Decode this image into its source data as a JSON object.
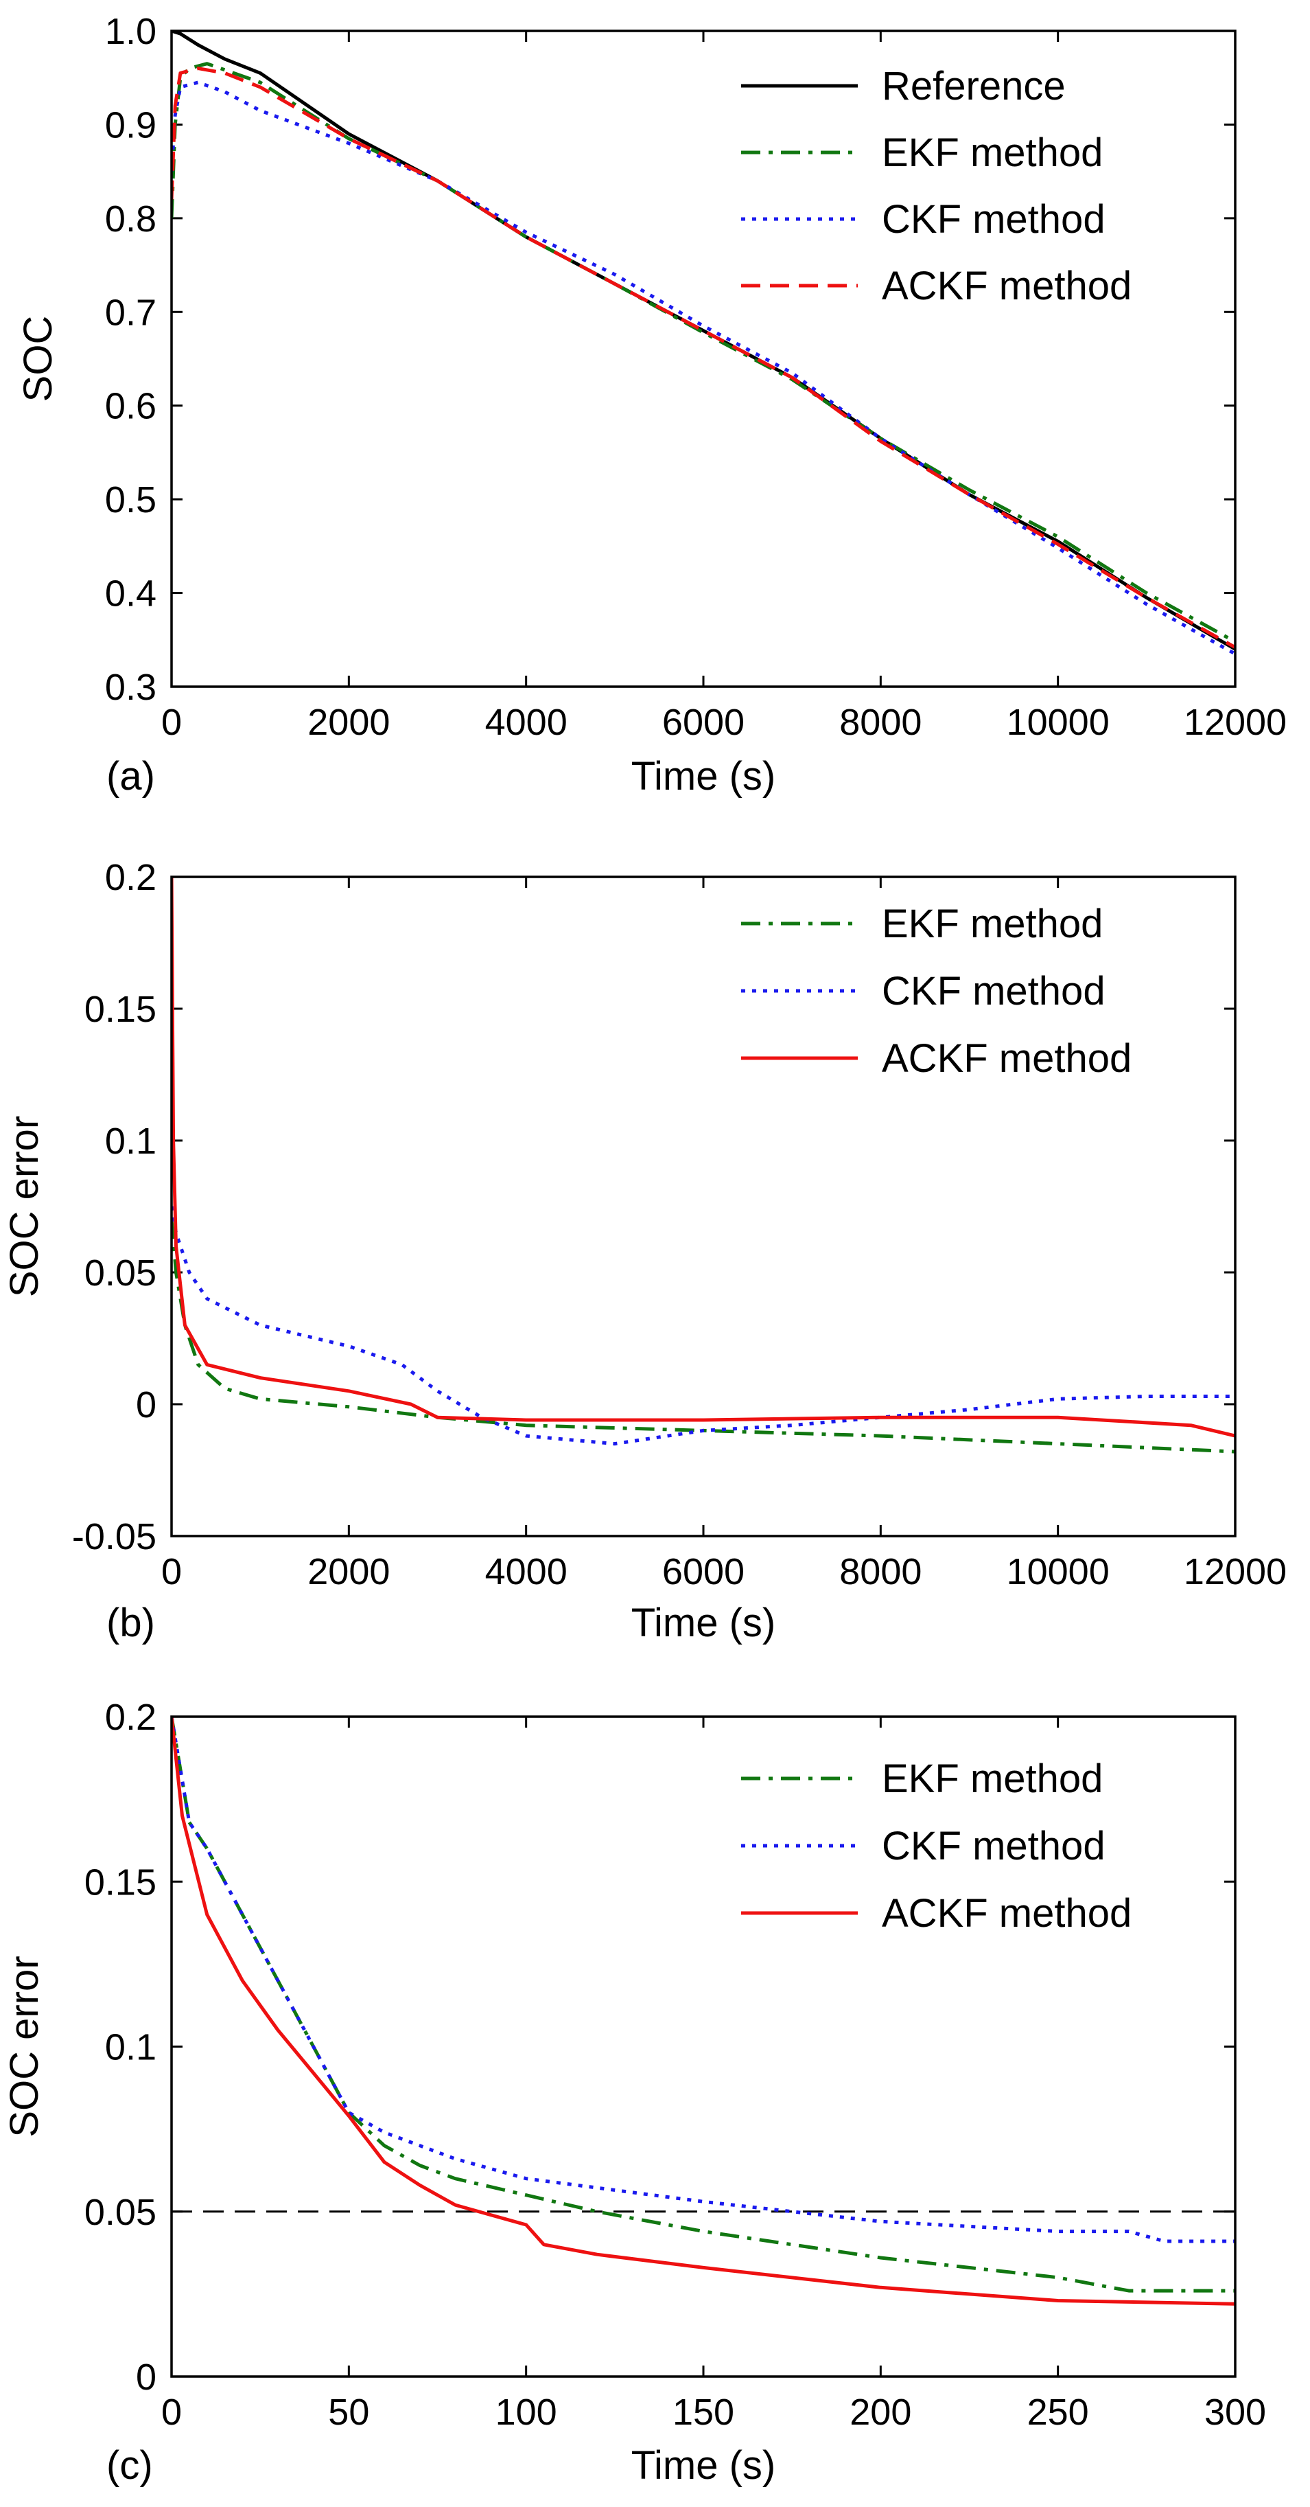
{
  "chart_data": [
    {
      "panel": "(a)",
      "type": "line",
      "xlabel": "Time (s)",
      "ylabel": "SOC",
      "xlim": [
        0,
        12000
      ],
      "ylim": [
        0.3,
        1.0
      ],
      "xticks": [
        0,
        2000,
        4000,
        6000,
        8000,
        10000,
        12000
      ],
      "xtick_labels": [
        "0",
        "2000",
        "4000",
        "6000",
        "8000",
        "10000",
        "12000"
      ],
      "yticks": [
        0.3,
        0.4,
        0.5,
        0.6,
        0.7,
        0.8,
        0.9,
        1.0
      ],
      "ytick_labels": [
        "0.3",
        "0.4",
        "0.5",
        "0.6",
        "0.7",
        "0.8",
        "0.9",
        "1.0"
      ],
      "legend_position": "top-right",
      "series": [
        {
          "name": "Reference",
          "color": "#000000",
          "style": "solid",
          "points": [
            [
              0,
              1.0
            ],
            [
              100,
              0.997
            ],
            [
              300,
              0.985
            ],
            [
              600,
              0.97
            ],
            [
              1000,
              0.955
            ],
            [
              2000,
              0.89
            ],
            [
              3000,
              0.84
            ],
            [
              4000,
              0.78
            ],
            [
              5000,
              0.73
            ],
            [
              6000,
              0.68
            ],
            [
              7000,
              0.63
            ],
            [
              8000,
              0.565
            ],
            [
              9000,
              0.505
            ],
            [
              10000,
              0.455
            ],
            [
              11000,
              0.395
            ],
            [
              12000,
              0.34
            ]
          ]
        },
        {
          "name": "EKF method",
          "color": "#117711",
          "style": "dashdot",
          "points": [
            [
              0,
              0.8
            ],
            [
              40,
              0.9
            ],
            [
              100,
              0.95
            ],
            [
              200,
              0.96
            ],
            [
              400,
              0.965
            ],
            [
              1000,
              0.945
            ],
            [
              2000,
              0.885
            ],
            [
              3000,
              0.84
            ],
            [
              4000,
              0.78
            ],
            [
              5000,
              0.73
            ],
            [
              6000,
              0.678
            ],
            [
              7000,
              0.628
            ],
            [
              8000,
              0.565
            ],
            [
              9000,
              0.51
            ],
            [
              10000,
              0.46
            ],
            [
              11000,
              0.4
            ],
            [
              12000,
              0.348
            ]
          ]
        },
        {
          "name": "CKF method",
          "color": "#1a1aee",
          "style": "dotted",
          "points": [
            [
              0,
              0.85
            ],
            [
              40,
              0.91
            ],
            [
              100,
              0.94
            ],
            [
              300,
              0.945
            ],
            [
              600,
              0.935
            ],
            [
              1000,
              0.915
            ],
            [
              2000,
              0.88
            ],
            [
              3000,
              0.84
            ],
            [
              4000,
              0.785
            ],
            [
              5000,
              0.74
            ],
            [
              6000,
              0.685
            ],
            [
              7000,
              0.635
            ],
            [
              8000,
              0.565
            ],
            [
              9000,
              0.505
            ],
            [
              10000,
              0.448
            ],
            [
              11000,
              0.388
            ],
            [
              12000,
              0.335
            ]
          ]
        },
        {
          "name": "ACKF method",
          "color": "#ee1111",
          "style": "dashed",
          "points": [
            [
              0,
              0.82
            ],
            [
              40,
              0.92
            ],
            [
              100,
              0.955
            ],
            [
              300,
              0.96
            ],
            [
              600,
              0.955
            ],
            [
              1000,
              0.94
            ],
            [
              2000,
              0.885
            ],
            [
              3000,
              0.84
            ],
            [
              4000,
              0.78
            ],
            [
              5000,
              0.73
            ],
            [
              6000,
              0.68
            ],
            [
              7000,
              0.63
            ],
            [
              8000,
              0.562
            ],
            [
              9000,
              0.505
            ],
            [
              10000,
              0.452
            ],
            [
              11000,
              0.395
            ],
            [
              12000,
              0.342
            ]
          ]
        }
      ]
    },
    {
      "panel": "(b)",
      "type": "line",
      "xlabel": "Time (s)",
      "ylabel": "SOC error",
      "xlim": [
        0,
        12000
      ],
      "ylim": [
        -0.05,
        0.2
      ],
      "xticks": [
        0,
        2000,
        4000,
        6000,
        8000,
        10000,
        12000
      ],
      "xtick_labels": [
        "0",
        "2000",
        "4000",
        "6000",
        "8000",
        "10000",
        "12000"
      ],
      "yticks": [
        -0.05,
        0,
        0.05,
        0.1,
        0.15,
        0.2
      ],
      "ytick_labels": [
        "-0.05",
        "0",
        "0.05",
        "0.1",
        "0.15",
        "0.2"
      ],
      "legend_position": "top-right",
      "series": [
        {
          "name": "EKF method",
          "color": "#117711",
          "style": "dashdot",
          "points": [
            [
              0,
              0.07
            ],
            [
              50,
              0.05
            ],
            [
              150,
              0.03
            ],
            [
              300,
              0.015
            ],
            [
              600,
              0.006
            ],
            [
              1000,
              0.002
            ],
            [
              2000,
              -0.001
            ],
            [
              3000,
              -0.005
            ],
            [
              4000,
              -0.008
            ],
            [
              6000,
              -0.01
            ],
            [
              8000,
              -0.012
            ],
            [
              10000,
              -0.015
            ],
            [
              12000,
              -0.018
            ]
          ]
        },
        {
          "name": "CKF method",
          "color": "#1a1aee",
          "style": "dotted",
          "points": [
            [
              0,
              0.075
            ],
            [
              50,
              0.065
            ],
            [
              200,
              0.05
            ],
            [
              400,
              0.04
            ],
            [
              1000,
              0.03
            ],
            [
              2000,
              0.022
            ],
            [
              2600,
              0.015
            ],
            [
              3000,
              0.005
            ],
            [
              3500,
              -0.005
            ],
            [
              4000,
              -0.012
            ],
            [
              5000,
              -0.015
            ],
            [
              6000,
              -0.01
            ],
            [
              7000,
              -0.008
            ],
            [
              8000,
              -0.005
            ],
            [
              9000,
              -0.002
            ],
            [
              10000,
              0.002
            ],
            [
              11000,
              0.003
            ],
            [
              12000,
              0.003
            ]
          ]
        },
        {
          "name": "ACKF method",
          "color": "#ee1111",
          "style": "solid",
          "points": [
            [
              0,
              0.2
            ],
            [
              20,
              0.1
            ],
            [
              50,
              0.06
            ],
            [
              150,
              0.03
            ],
            [
              400,
              0.015
            ],
            [
              1000,
              0.01
            ],
            [
              2000,
              0.005
            ],
            [
              2700,
              0.0
            ],
            [
              3000,
              -0.005
            ],
            [
              4000,
              -0.006
            ],
            [
              6000,
              -0.006
            ],
            [
              8000,
              -0.005
            ],
            [
              10000,
              -0.005
            ],
            [
              11500,
              -0.008
            ],
            [
              12000,
              -0.012
            ]
          ]
        }
      ]
    },
    {
      "panel": "(c)",
      "type": "line",
      "xlabel": "Time (s)",
      "ylabel": "SOC error",
      "xlim": [
        0,
        300
      ],
      "ylim": [
        0,
        0.2
      ],
      "xticks": [
        0,
        50,
        100,
        150,
        200,
        250,
        300
      ],
      "xtick_labels": [
        "0",
        "50",
        "100",
        "150",
        "200",
        "250",
        "300"
      ],
      "yticks": [
        0,
        0.05,
        0.1,
        0.15,
        0.2
      ],
      "ytick_labels": [
        "0",
        "0.05",
        "0.1",
        "0.15",
        "0.2"
      ],
      "legend_position": "top-right",
      "reference_line": {
        "y": 0.05,
        "style": "dashed",
        "color": "#000000"
      },
      "series": [
        {
          "name": "EKF method",
          "color": "#117711",
          "style": "dashdot",
          "points": [
            [
              0,
              0.2
            ],
            [
              5,
              0.168
            ],
            [
              10,
              0.16
            ],
            [
              20,
              0.14
            ],
            [
              30,
              0.12
            ],
            [
              40,
              0.1
            ],
            [
              50,
              0.08
            ],
            [
              60,
              0.07
            ],
            [
              70,
              0.064
            ],
            [
              80,
              0.06
            ],
            [
              100,
              0.055
            ],
            [
              120,
              0.05
            ],
            [
              150,
              0.044
            ],
            [
              200,
              0.036
            ],
            [
              250,
              0.03
            ],
            [
              270,
              0.026
            ],
            [
              300,
              0.026
            ]
          ]
        },
        {
          "name": "CKF method",
          "color": "#1a1aee",
          "style": "dotted",
          "points": [
            [
              0,
              0.2
            ],
            [
              5,
              0.168
            ],
            [
              10,
              0.16
            ],
            [
              20,
              0.14
            ],
            [
              30,
              0.12
            ],
            [
              40,
              0.1
            ],
            [
              50,
              0.08
            ],
            [
              60,
              0.074
            ],
            [
              80,
              0.066
            ],
            [
              100,
              0.06
            ],
            [
              150,
              0.053
            ],
            [
              200,
              0.047
            ],
            [
              250,
              0.044
            ],
            [
              270,
              0.044
            ],
            [
              280,
              0.041
            ],
            [
              300,
              0.041
            ]
          ]
        },
        {
          "name": "ACKF method",
          "color": "#ee1111",
          "style": "solid",
          "points": [
            [
              0,
              0.2
            ],
            [
              3,
              0.17
            ],
            [
              10,
              0.14
            ],
            [
              20,
              0.12
            ],
            [
              30,
              0.105
            ],
            [
              40,
              0.092
            ],
            [
              50,
              0.079
            ],
            [
              60,
              0.065
            ],
            [
              70,
              0.058
            ],
            [
              80,
              0.052
            ],
            [
              90,
              0.049
            ],
            [
              100,
              0.046
            ],
            [
              105,
              0.04
            ],
            [
              120,
              0.037
            ],
            [
              150,
              0.033
            ],
            [
              200,
              0.027
            ],
            [
              250,
              0.023
            ],
            [
              300,
              0.022
            ]
          ]
        }
      ]
    }
  ]
}
